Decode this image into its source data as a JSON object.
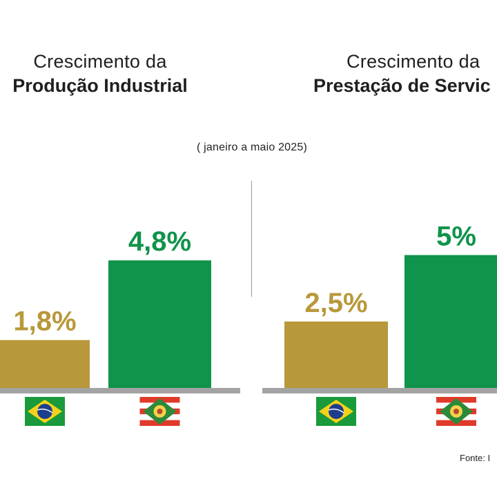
{
  "period": "( janeiro a maio 2025)",
  "source": "Fonte: I",
  "colors": {
    "gold": "#b8983a",
    "green": "#10934a",
    "baseline": "#a3a3a3"
  },
  "chart_data": [
    {
      "type": "bar",
      "title_line1": "Crescimento da",
      "title_line2": "Produção Industrial",
      "categories": [
        "Brasil flag",
        "Santa Catarina flag"
      ],
      "values": [
        1.8,
        4.8
      ],
      "labels": [
        "1,8%",
        "4,8%"
      ],
      "bar_colors": [
        "#b8983a",
        "#10934a"
      ],
      "unit": "%"
    },
    {
      "type": "bar",
      "title_line1": "Crescimento da",
      "title_line2": "Prestação de Servic",
      "categories": [
        "Brasil flag",
        "Santa Catarina flag"
      ],
      "values": [
        2.5,
        5
      ],
      "labels": [
        "2,5%",
        "5%"
      ],
      "bar_colors": [
        "#b8983a",
        "#10934a"
      ],
      "unit": "%"
    }
  ]
}
